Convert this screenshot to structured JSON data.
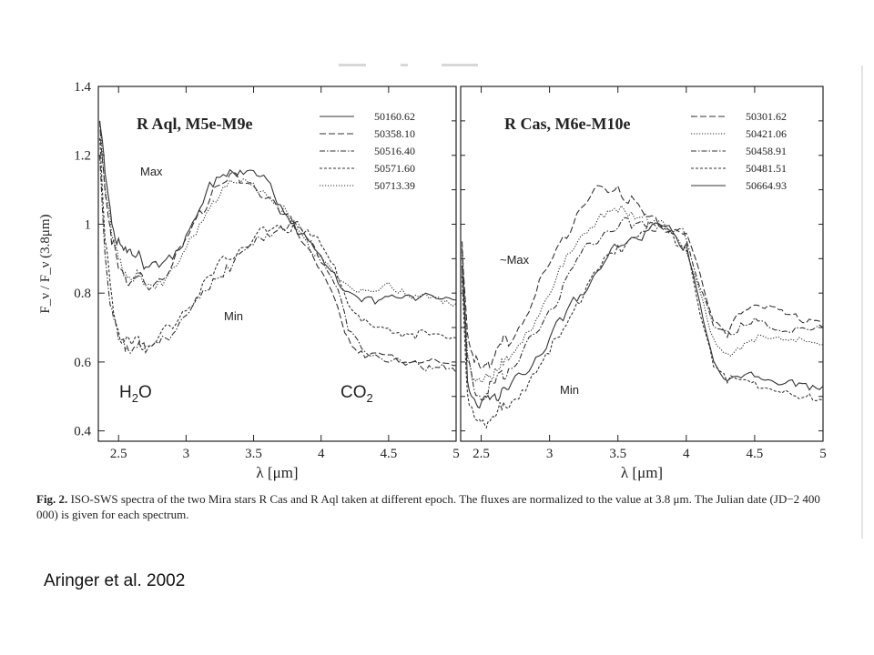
{
  "chart_data": [
    {
      "type": "line",
      "title": "R Aql, M5e-M9e",
      "xlabel": "λ [μm]",
      "ylabel": "F_ν / F_ν (3.8μm)",
      "xlim": [
        2.35,
        5.0
      ],
      "ylim": [
        0.37,
        1.4
      ],
      "x_ticks": [
        "2.5",
        "3",
        "3.5",
        "4",
        "4.5",
        "5"
      ],
      "y_ticks": [
        "0.4",
        "0.6",
        "0.8",
        "1",
        "1.2",
        "1.4"
      ],
      "grid": false,
      "legend_position": "top-right",
      "annotations": [
        "Max",
        "Min",
        "H2O",
        "CO2"
      ],
      "x": [
        2.36,
        2.4,
        2.45,
        2.5,
        2.55,
        2.6,
        2.65,
        2.7,
        2.8,
        2.9,
        3.0,
        3.1,
        3.2,
        3.3,
        3.4,
        3.5,
        3.6,
        3.7,
        3.8,
        3.9,
        4.0,
        4.1,
        4.2,
        4.3,
        4.4,
        4.5,
        4.6,
        4.7,
        4.8,
        4.9,
        5.0
      ],
      "series": [
        {
          "name": "50160.62",
          "style": "solid",
          "values": [
            1.3,
            1.15,
            1.0,
            0.95,
            0.92,
            0.9,
            0.92,
            0.88,
            0.88,
            0.9,
            0.97,
            1.05,
            1.12,
            1.15,
            1.16,
            1.15,
            1.12,
            1.05,
            1.0,
            0.95,
            0.9,
            0.85,
            0.8,
            0.78,
            0.78,
            0.8,
            0.79,
            0.78,
            0.8,
            0.79,
            0.78
          ]
        },
        {
          "name": "50358.10",
          "style": "dashed",
          "values": [
            1.3,
            1.1,
            0.95,
            0.88,
            0.85,
            0.83,
            0.85,
            0.82,
            0.84,
            0.88,
            0.95,
            1.03,
            1.1,
            1.13,
            1.13,
            1.12,
            1.08,
            1.03,
            1.0,
            0.94,
            0.87,
            0.78,
            0.66,
            0.62,
            0.62,
            0.62,
            0.6,
            0.6,
            0.6,
            0.6,
            0.59
          ]
        },
        {
          "name": "50516.40",
          "style": "dash-dot",
          "values": [
            1.2,
            0.9,
            0.75,
            0.67,
            0.64,
            0.64,
            0.66,
            0.63,
            0.66,
            0.69,
            0.74,
            0.78,
            0.83,
            0.87,
            0.91,
            0.94,
            0.97,
            0.99,
            1.0,
            0.96,
            0.9,
            0.84,
            0.7,
            0.64,
            0.62,
            0.6,
            0.6,
            0.6,
            0.58,
            0.58,
            0.57
          ]
        },
        {
          "name": "50571.60",
          "style": "short-dash",
          "values": [
            1.25,
            0.95,
            0.78,
            0.68,
            0.66,
            0.65,
            0.67,
            0.64,
            0.67,
            0.7,
            0.76,
            0.81,
            0.86,
            0.9,
            0.93,
            0.96,
            0.98,
            0.99,
            1.0,
            0.97,
            0.93,
            0.88,
            0.77,
            0.72,
            0.7,
            0.7,
            0.68,
            0.68,
            0.69,
            0.68,
            0.67
          ]
        },
        {
          "name": "50713.39",
          "style": "dotted",
          "values": [
            1.3,
            1.12,
            0.97,
            0.9,
            0.86,
            0.84,
            0.85,
            0.82,
            0.83,
            0.86,
            0.92,
            1.0,
            1.07,
            1.11,
            1.12,
            1.12,
            1.09,
            1.04,
            1.0,
            0.95,
            0.9,
            0.85,
            0.82,
            0.81,
            0.8,
            0.82,
            0.8,
            0.79,
            0.79,
            0.78,
            0.77
          ]
        }
      ]
    },
    {
      "type": "line",
      "title": "R Cas, M6e-M10e",
      "xlabel": "λ [μm]",
      "ylabel": "",
      "xlim": [
        2.35,
        5.0
      ],
      "ylim": [
        0.37,
        1.4
      ],
      "x_ticks": [
        "2.5",
        "3",
        "3.5",
        "4",
        "4.5",
        "5"
      ],
      "grid": false,
      "legend_position": "top-right",
      "annotations": [
        "~Max",
        "Min"
      ],
      "x": [
        2.36,
        2.4,
        2.45,
        2.5,
        2.55,
        2.6,
        2.65,
        2.7,
        2.8,
        2.9,
        3.0,
        3.1,
        3.2,
        3.3,
        3.4,
        3.5,
        3.6,
        3.7,
        3.8,
        3.9,
        4.0,
        4.1,
        4.2,
        4.3,
        4.4,
        4.5,
        4.6,
        4.7,
        4.8,
        4.9,
        5.0
      ],
      "series": [
        {
          "name": "50301.62",
          "style": "dashed",
          "values": [
            0.95,
            0.68,
            0.6,
            0.58,
            0.6,
            0.62,
            0.66,
            0.66,
            0.72,
            0.8,
            0.88,
            0.96,
            1.03,
            1.08,
            1.1,
            1.1,
            1.07,
            1.02,
            1.0,
            0.99,
            0.98,
            0.86,
            0.72,
            0.68,
            0.75,
            0.77,
            0.76,
            0.74,
            0.73,
            0.72,
            0.72
          ]
        },
        {
          "name": "50421.06",
          "style": "dotted",
          "values": [
            0.92,
            0.62,
            0.55,
            0.54,
            0.55,
            0.57,
            0.6,
            0.6,
            0.66,
            0.73,
            0.8,
            0.88,
            0.95,
            1.0,
            1.03,
            1.04,
            1.03,
            1.02,
            1.0,
            0.97,
            0.92,
            0.8,
            0.66,
            0.62,
            0.64,
            0.67,
            0.68,
            0.67,
            0.66,
            0.66,
            0.65
          ]
        },
        {
          "name": "50458.91",
          "style": "dash-dot",
          "values": [
            0.93,
            0.6,
            0.52,
            0.5,
            0.52,
            0.54,
            0.57,
            0.57,
            0.62,
            0.68,
            0.75,
            0.82,
            0.89,
            0.94,
            0.98,
            1.0,
            1.0,
            1.0,
            1.0,
            0.98,
            0.96,
            0.82,
            0.7,
            0.68,
            0.7,
            0.72,
            0.7,
            0.69,
            0.7,
            0.69,
            0.7
          ]
        },
        {
          "name": "50481.51",
          "style": "short-dash",
          "values": [
            0.85,
            0.5,
            0.43,
            0.42,
            0.43,
            0.45,
            0.47,
            0.47,
            0.52,
            0.57,
            0.63,
            0.7,
            0.77,
            0.83,
            0.89,
            0.93,
            0.96,
            0.98,
            1.0,
            0.97,
            0.93,
            0.75,
            0.6,
            0.55,
            0.55,
            0.54,
            0.52,
            0.51,
            0.5,
            0.5,
            0.49
          ]
        },
        {
          "name": "50664.93",
          "style": "solid",
          "values": [
            0.88,
            0.55,
            0.49,
            0.47,
            0.49,
            0.5,
            0.52,
            0.52,
            0.56,
            0.61,
            0.67,
            0.73,
            0.79,
            0.84,
            0.89,
            0.93,
            0.96,
            0.98,
            1.0,
            0.97,
            0.93,
            0.76,
            0.6,
            0.55,
            0.56,
            0.56,
            0.55,
            0.54,
            0.54,
            0.53,
            0.53
          ]
        }
      ]
    }
  ],
  "caption": {
    "label": "Fig. 2.",
    "text": "ISO-SWS spectra of the two Mira stars R Cas and R Aql taken at different epoch. The fluxes are normalized to the value at 3.8 μm. The Julian date (JD−2 400 000) is given for each spectrum."
  },
  "credit": "Aringer et al. 2002",
  "colors": {
    "ink": "#222222",
    "background": "#ffffff"
  }
}
